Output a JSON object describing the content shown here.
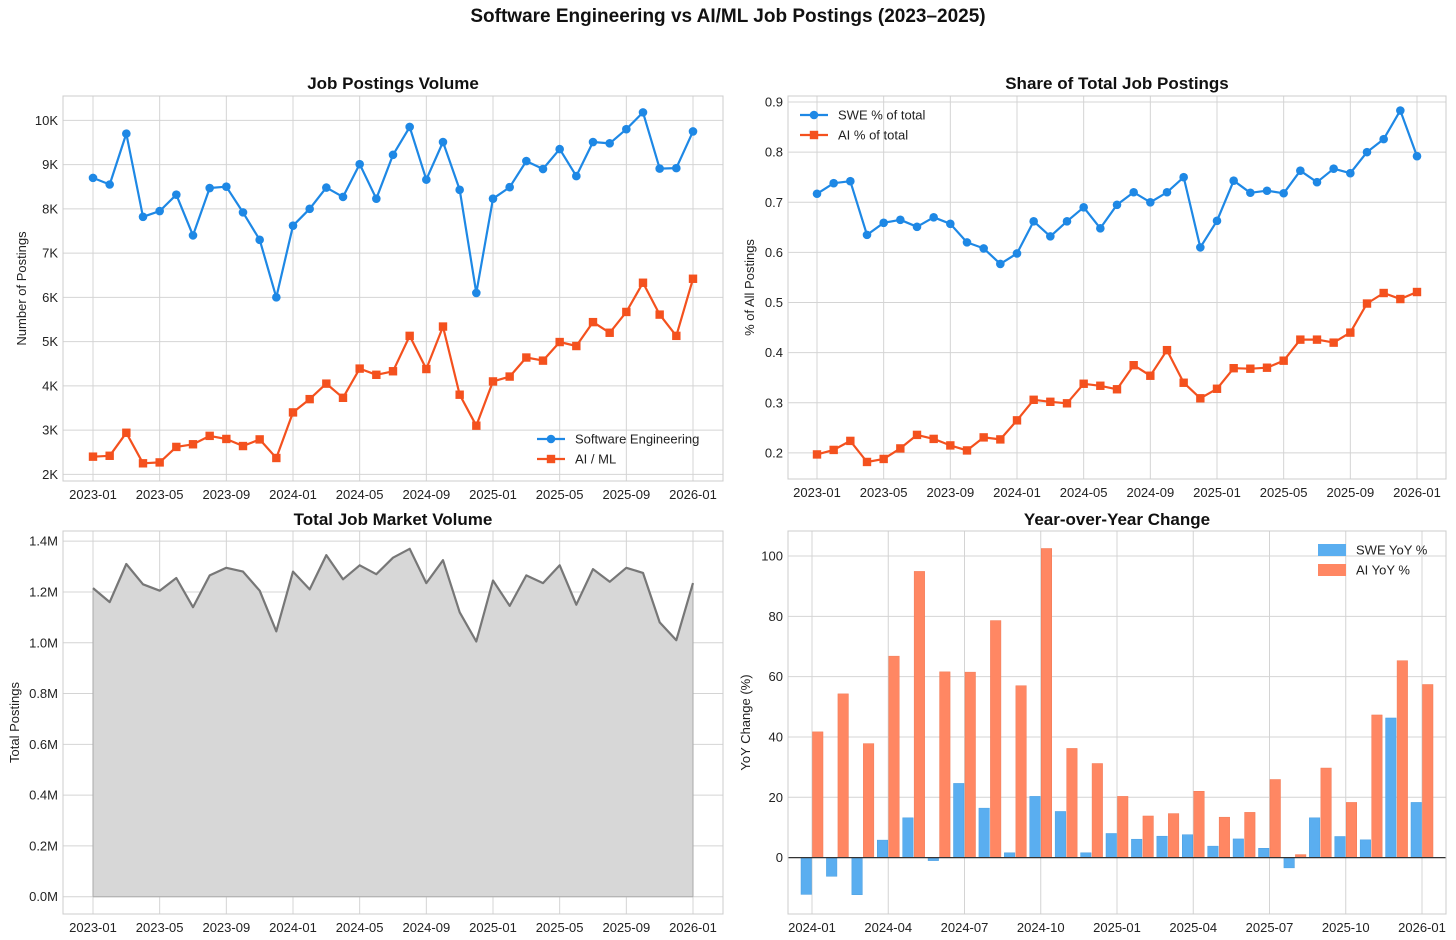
{
  "figure_title": "Software Engineering vs AI/ML Job Postings (2023–2025)",
  "colors": {
    "swe": "#1e88e5",
    "ai": "#f4511e",
    "total_line": "#777777",
    "total_fill": "#d7d7d7",
    "swe_bar": "#5aaef0",
    "ai_bar": "#ff8763"
  },
  "chart_data": [
    {
      "type": "line",
      "title": "Job Postings Volume",
      "ylabel": "Number of Postings",
      "xlabel": "",
      "months": [
        "2023-01",
        "2023-02",
        "2023-03",
        "2023-04",
        "2023-05",
        "2023-06",
        "2023-07",
        "2023-08",
        "2023-09",
        "2023-10",
        "2023-11",
        "2023-12",
        "2024-01",
        "2024-02",
        "2024-03",
        "2024-04",
        "2024-05",
        "2024-06",
        "2024-07",
        "2024-08",
        "2024-09",
        "2024-10",
        "2024-11",
        "2024-12",
        "2025-01",
        "2025-02",
        "2025-03",
        "2025-04",
        "2025-05",
        "2025-06",
        "2025-07",
        "2025-08",
        "2025-09",
        "2025-10",
        "2025-11",
        "2025-12",
        "2026-01"
      ],
      "x_ticks": [
        "2023-01",
        "2023-05",
        "2023-09",
        "2024-01",
        "2024-05",
        "2024-09",
        "2025-01",
        "2025-05",
        "2025-09",
        "2026-01"
      ],
      "y_ticks": [
        "2K",
        "3K",
        "4K",
        "5K",
        "6K",
        "7K",
        "8K",
        "9K",
        "10K"
      ],
      "ylim": [
        1850,
        10550
      ],
      "legend_position": "lower-right",
      "series": [
        {
          "name": "Software Engineering",
          "marker": "circle",
          "values": [
            8700,
            8550,
            9700,
            7820,
            7950,
            8320,
            7400,
            8470,
            8500,
            7920,
            7300,
            6000,
            7620,
            8000,
            8480,
            8270,
            9010,
            8230,
            9220,
            9850,
            8660,
            9510,
            8430,
            6100,
            8230,
            8490,
            9080,
            8900,
            9350,
            8740,
            9510,
            9480,
            9800,
            10180,
            8910,
            8920,
            9750
          ]
        },
        {
          "name": "AI / ML",
          "marker": "square",
          "values": [
            2400,
            2420,
            2940,
            2250,
            2270,
            2620,
            2680,
            2870,
            2800,
            2640,
            2790,
            2370,
            3400,
            3700,
            4050,
            3730,
            4390,
            4250,
            4330,
            5130,
            4380,
            5340,
            3800,
            3100,
            4100,
            4210,
            4640,
            4570,
            4990,
            4900,
            5440,
            5200,
            5670,
            6330,
            5610,
            5130,
            6420
          ]
        }
      ]
    },
    {
      "type": "line",
      "title": "Share of Total Job Postings",
      "ylabel": "% of All Postings",
      "xlabel": "",
      "x_ticks": [
        "2023-01",
        "2023-05",
        "2023-09",
        "2024-01",
        "2024-05",
        "2024-09",
        "2025-01",
        "2025-05",
        "2025-09",
        "2026-01"
      ],
      "y_ticks": [
        "0.2",
        "0.3",
        "0.4",
        "0.5",
        "0.6",
        "0.7",
        "0.8",
        "0.9"
      ],
      "ylim": [
        0.148,
        0.912
      ],
      "legend_position": "upper-left",
      "series": [
        {
          "name": "SWE % of total",
          "marker": "circle",
          "values": [
            0.717,
            0.738,
            0.742,
            0.635,
            0.659,
            0.665,
            0.651,
            0.67,
            0.657,
            0.62,
            0.608,
            0.577,
            0.598,
            0.662,
            0.632,
            0.662,
            0.69,
            0.648,
            0.695,
            0.72,
            0.7,
            0.72,
            0.75,
            0.61,
            0.663,
            0.743,
            0.719,
            0.723,
            0.718,
            0.763,
            0.74,
            0.767,
            0.758,
            0.8,
            0.826,
            0.883,
            0.792
          ]
        },
        {
          "name": "AI % of total",
          "marker": "square",
          "values": [
            0.197,
            0.206,
            0.224,
            0.182,
            0.188,
            0.209,
            0.236,
            0.228,
            0.215,
            0.205,
            0.231,
            0.227,
            0.265,
            0.306,
            0.302,
            0.299,
            0.338,
            0.334,
            0.327,
            0.375,
            0.354,
            0.405,
            0.34,
            0.309,
            0.328,
            0.369,
            0.368,
            0.37,
            0.384,
            0.426,
            0.426,
            0.42,
            0.44,
            0.498,
            0.519,
            0.507,
            0.521
          ]
        }
      ]
    },
    {
      "type": "area",
      "title": "Total Job Market Volume",
      "ylabel": "Total Postings",
      "xlabel": "",
      "x_ticks": [
        "2023-01",
        "2023-05",
        "2023-09",
        "2024-01",
        "2024-05",
        "2024-09",
        "2025-01",
        "2025-05",
        "2025-09",
        "2026-01"
      ],
      "y_ticks": [
        "0.0M",
        "0.2M",
        "0.4M",
        "0.6M",
        "0.8M",
        "1.0M",
        "1.2M",
        "1.4M"
      ],
      "ylim": [
        -0.068,
        1.44
      ],
      "series": [
        {
          "name": "Total",
          "values": [
            1.215,
            1.16,
            1.31,
            1.23,
            1.205,
            1.255,
            1.14,
            1.265,
            1.295,
            1.28,
            1.205,
            1.045,
            1.28,
            1.21,
            1.345,
            1.25,
            1.305,
            1.27,
            1.335,
            1.37,
            1.235,
            1.325,
            1.12,
            1.005,
            1.245,
            1.145,
            1.265,
            1.235,
            1.305,
            1.15,
            1.29,
            1.24,
            1.295,
            1.275,
            1.08,
            1.01,
            1.235
          ]
        }
      ]
    },
    {
      "type": "bar",
      "title": "Year-over-Year Change",
      "ylabel": "YoY Change (%)",
      "xlabel": "",
      "months": [
        "2024-01",
        "2024-02",
        "2024-03",
        "2024-04",
        "2024-05",
        "2024-06",
        "2024-07",
        "2024-08",
        "2024-09",
        "2024-10",
        "2024-11",
        "2024-12",
        "2025-01",
        "2025-02",
        "2025-03",
        "2025-04",
        "2025-05",
        "2025-06",
        "2025-07",
        "2025-08",
        "2025-09",
        "2025-10",
        "2025-11",
        "2025-12",
        "2026-01"
      ],
      "x_ticks": [
        "2024-01",
        "2024-04",
        "2024-07",
        "2024-10",
        "2025-01",
        "2025-04",
        "2025-07",
        "2025-10",
        "2026-01"
      ],
      "y_ticks": [
        "0",
        "20",
        "40",
        "60",
        "80",
        "100"
      ],
      "ylim": [
        -18.7,
        108.3
      ],
      "legend_position": "upper-right",
      "series": [
        {
          "name": "SWE YoY %",
          "values": [
            -12.2,
            -6.2,
            -12.3,
            5.8,
            13.2,
            -1.0,
            24.6,
            16.4,
            1.6,
            20.3,
            15.3,
            1.6,
            8.0,
            6.1,
            7.1,
            7.6,
            3.8,
            6.2,
            3.1,
            -3.4,
            13.2,
            7.0,
            5.9,
            46.3,
            18.3
          ]
        },
        {
          "name": "AI YoY %",
          "values": [
            41.7,
            54.3,
            37.8,
            66.8,
            94.9,
            61.6,
            61.5,
            78.6,
            57.0,
            102.5,
            36.2,
            31.2,
            20.3,
            13.8,
            14.6,
            22.0,
            13.4,
            15.0,
            25.9,
            1.0,
            29.7,
            18.3,
            47.3,
            65.3,
            57.4
          ]
        }
      ]
    }
  ]
}
